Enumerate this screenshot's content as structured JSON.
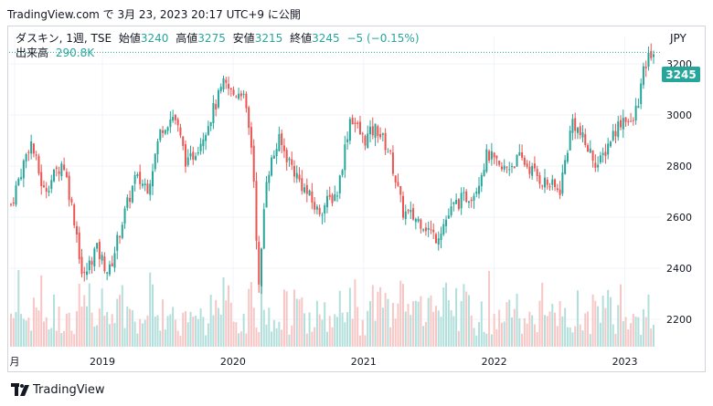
{
  "header": {
    "text": "TradingView.com で 3月 23, 2023 20:17 UTC+9 に公開"
  },
  "legend": {
    "symbol": "ダスキン, 1週, TSE",
    "open_label": "始値",
    "open": "3240",
    "high_label": "高値",
    "high": "3275",
    "low_label": "安値",
    "low": "3215",
    "close_label": "終値",
    "close": "3245",
    "change": "−5 (−0.15%)",
    "volume_label": "出来高",
    "volume": "290.8K"
  },
  "currency": "JPY",
  "footer": {
    "brand": "TradingView"
  },
  "colors": {
    "up": "#26a69a",
    "down": "#ef5350",
    "up_vol": "#b2dfdb",
    "down_vol": "#f7c6c5",
    "grid": "#f0f3fa",
    "axis_text": "#131722"
  },
  "chart_data": {
    "type": "candlestick",
    "interval": "weekly",
    "y_axis_ticks": [
      "3200",
      "3000",
      "2800",
      "2600",
      "2400",
      "2200"
    ],
    "x_axis_ticks": [
      "月",
      "2019",
      "2020",
      "2021",
      "2022",
      "2023"
    ],
    "last_price": "3245",
    "ylim": [
      2050,
      3300
    ],
    "grid": true,
    "price_path": [
      [
        2018.3,
        2650
      ],
      [
        2018.45,
        2900
      ],
      [
        2018.55,
        2700
      ],
      [
        2018.7,
        2820
      ],
      [
        2018.8,
        2550
      ],
      [
        2018.85,
        2350
      ],
      [
        2018.95,
        2480
      ],
      [
        2019.05,
        2380
      ],
      [
        2019.15,
        2580
      ],
      [
        2019.25,
        2750
      ],
      [
        2019.35,
        2720
      ],
      [
        2019.45,
        2950
      ],
      [
        2019.55,
        3000
      ],
      [
        2019.65,
        2800
      ],
      [
        2019.75,
        2900
      ],
      [
        2019.85,
        3020
      ],
      [
        2019.93,
        3120
      ],
      [
        2020.0,
        3080
      ],
      [
        2020.07,
        3100
      ],
      [
        2020.15,
        2850
      ],
      [
        2020.2,
        2300
      ],
      [
        2020.25,
        2750
      ],
      [
        2020.35,
        2900
      ],
      [
        2020.5,
        2750
      ],
      [
        2020.65,
        2620
      ],
      [
        2020.8,
        2700
      ],
      [
        2020.9,
        3000
      ],
      [
        2021.0,
        2900
      ],
      [
        2021.1,
        2950
      ],
      [
        2021.2,
        2850
      ],
      [
        2021.3,
        2620
      ],
      [
        2021.45,
        2580
      ],
      [
        2021.55,
        2520
      ],
      [
        2021.7,
        2650
      ],
      [
        2021.85,
        2700
      ],
      [
        2021.95,
        2850
      ],
      [
        2022.05,
        2780
      ],
      [
        2022.2,
        2830
      ],
      [
        2022.35,
        2750
      ],
      [
        2022.5,
        2700
      ],
      [
        2022.6,
        2980
      ],
      [
        2022.7,
        2880
      ],
      [
        2022.8,
        2800
      ],
      [
        2022.9,
        2920
      ],
      [
        2023.0,
        3000
      ],
      [
        2023.05,
        2950
      ],
      [
        2023.1,
        3050
      ],
      [
        2023.15,
        3180
      ],
      [
        2023.2,
        3245
      ]
    ],
    "volume_range": [
      40,
      300
    ]
  }
}
